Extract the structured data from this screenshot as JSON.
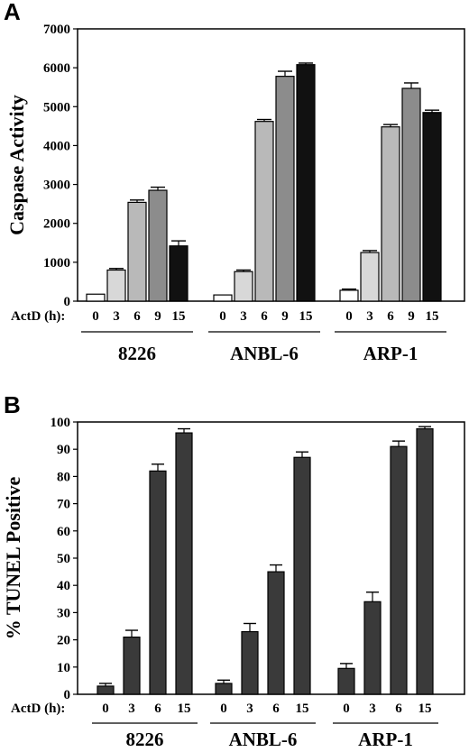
{
  "chart_data": [
    {
      "panel_label": "A",
      "type": "bar",
      "ylabel": "Caspase Activity",
      "ylim": [
        0,
        7000
      ],
      "yticks": [
        0,
        1000,
        2000,
        3000,
        4000,
        5000,
        6000,
        7000
      ],
      "x_axis_label": "ActD (h):",
      "groups": [
        {
          "name": "8226",
          "x": [
            "0",
            "3",
            "6",
            "9",
            "15"
          ],
          "values": [
            180,
            800,
            2540,
            2850,
            1420
          ],
          "errors": [
            0,
            40,
            60,
            80,
            130
          ]
        },
        {
          "name": "ANBL-6",
          "x": [
            "0",
            "3",
            "6",
            "9",
            "15"
          ],
          "values": [
            160,
            760,
            4620,
            5780,
            6080
          ],
          "errors": [
            0,
            40,
            50,
            130,
            40
          ]
        },
        {
          "name": "ARP-1",
          "x": [
            "0",
            "3",
            "6",
            "9",
            "15"
          ],
          "values": [
            280,
            1250,
            4480,
            5470,
            4850
          ],
          "errors": [
            30,
            50,
            60,
            140,
            60
          ]
        }
      ],
      "bar_fills": {
        "0": "#ffffff",
        "3": "#d8d8d8",
        "6": "#b9b9b9",
        "9": "#8c8c8c",
        "15": "#111111"
      }
    },
    {
      "panel_label": "B",
      "type": "bar",
      "ylabel": "% TUNEL Positive",
      "ylim": [
        0,
        100
      ],
      "yticks": [
        0,
        10,
        20,
        30,
        40,
        50,
        60,
        70,
        80,
        90,
        100
      ],
      "x_axis_label": "ActD (h):",
      "groups": [
        {
          "name": "8226",
          "x": [
            "0",
            "3",
            "6",
            "15"
          ],
          "values": [
            3,
            21,
            82,
            96
          ],
          "errors": [
            1,
            2.5,
            2.5,
            1.5
          ]
        },
        {
          "name": "ANBL-6",
          "x": [
            "0",
            "3",
            "6",
            "15"
          ],
          "values": [
            4,
            23,
            45,
            87
          ],
          "errors": [
            1.2,
            3,
            2.5,
            2
          ]
        },
        {
          "name": "ARP-1",
          "x": [
            "0",
            "3",
            "6",
            "15"
          ],
          "values": [
            9.5,
            34,
            91,
            97.5
          ],
          "errors": [
            1.8,
            3.5,
            2,
            0.8
          ]
        }
      ],
      "bar_fill": "#3a3a3a"
    }
  ]
}
